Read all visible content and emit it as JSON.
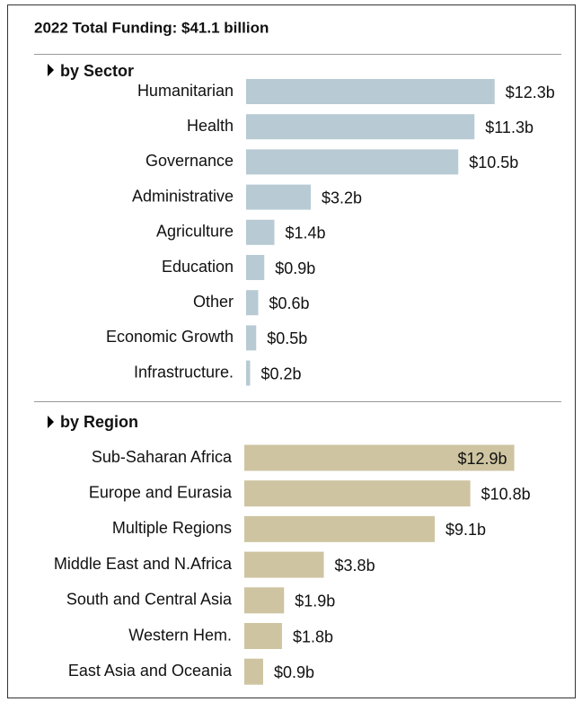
{
  "title": "2022 Total Funding: $41.1 billion",
  "chart_data": [
    {
      "type": "bar",
      "title": "by Sector",
      "color": "#b8cad4",
      "categories": [
        "Humanitarian",
        "Health",
        "Governance",
        "Administrative",
        "Agriculture",
        "Education",
        "Other",
        "Economic Growth",
        "Infrastructure."
      ],
      "values": [
        12.3,
        11.3,
        10.5,
        3.2,
        1.4,
        0.9,
        0.6,
        0.5,
        0.2
      ],
      "value_labels": [
        "$12.3b",
        "$11.3b",
        "$10.5b",
        "$3.2b",
        "$1.4b",
        "$0.9b",
        "$0.6b",
        "$0.5b",
        "$0.2b"
      ]
    },
    {
      "type": "bar",
      "title": "by Region",
      "color": "#cec4a1",
      "categories": [
        "Sub-Saharan Africa",
        "Europe and Eurasia",
        "Multiple Regions",
        "Middle East and N.Africa",
        "South and Central Asia",
        "Western Hem.",
        "East Asia and Oceania"
      ],
      "values": [
        12.9,
        10.8,
        9.1,
        3.8,
        1.9,
        1.8,
        0.9
      ],
      "value_labels": [
        "$12.9b",
        "$10.8b",
        "$9.1b",
        "$3.8b",
        "$1.9b",
        "$1.8b",
        "$0.9b"
      ]
    }
  ]
}
